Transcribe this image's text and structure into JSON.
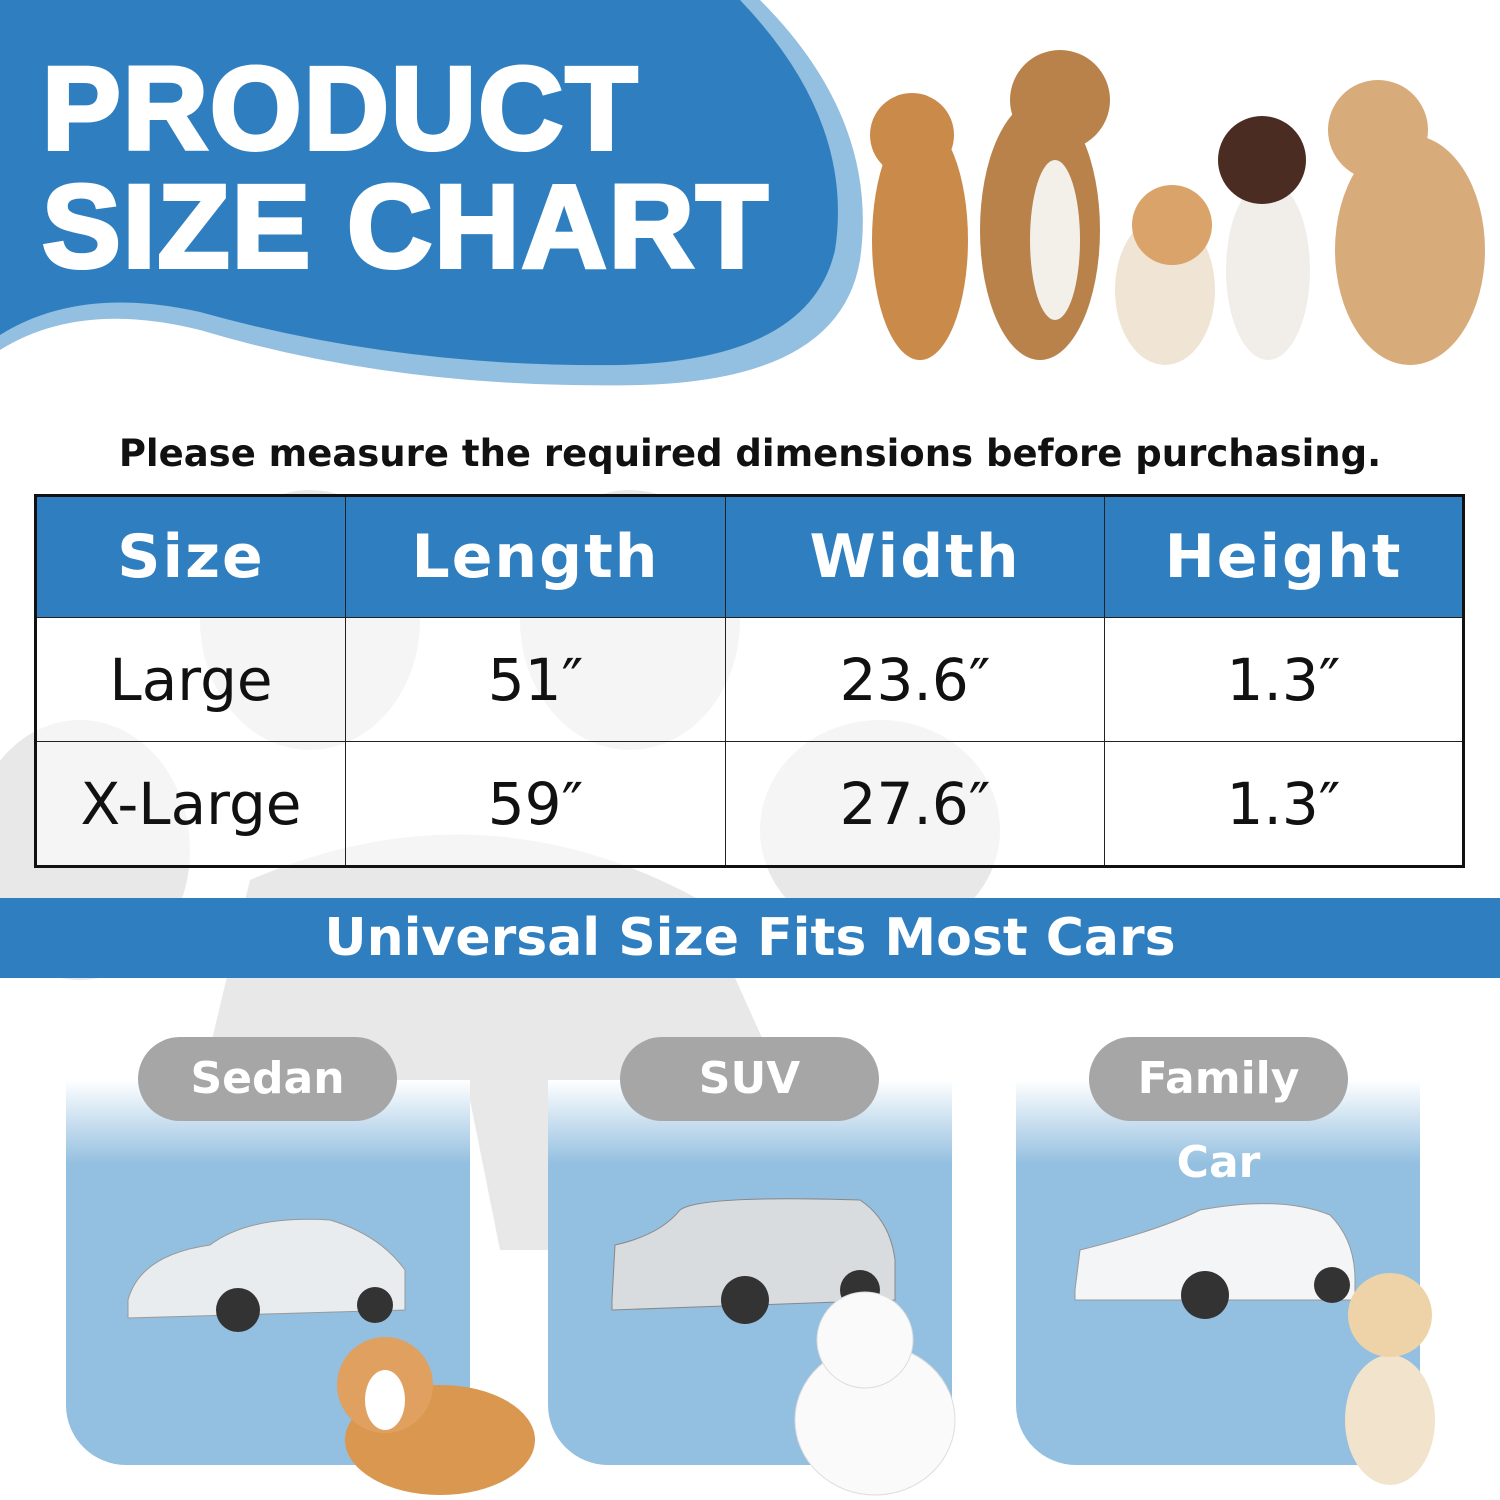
{
  "header": {
    "title_line1": "PRODUCT",
    "title_line2": "SIZE CHART"
  },
  "colors": {
    "brand_blue": "#2f7fc0",
    "light_blue": "#93bfe0",
    "pill_gray": "#a6a6a6",
    "paw_gray": "#e8e8e8"
  },
  "notice": "Please measure the required dimensions before purchasing.",
  "table": {
    "headers": [
      "Size",
      "Length",
      "Width",
      "Height"
    ],
    "rows": [
      [
        "Large",
        "51″",
        "23.6″",
        "1.3″"
      ],
      [
        "X-Large",
        "59″",
        "27.6″",
        "1.3″"
      ]
    ]
  },
  "banner": "Universal Size Fits Most Cars",
  "car_types": [
    {
      "label": "Sedan"
    },
    {
      "label": "SUV"
    },
    {
      "label": "Family Car"
    }
  ]
}
